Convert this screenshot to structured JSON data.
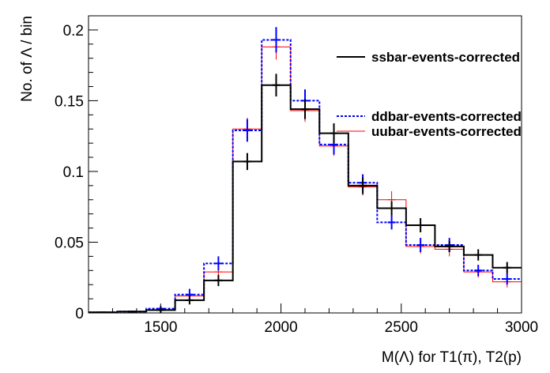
{
  "chart_data": {
    "type": "step-histogram",
    "xlabel": "M(Λ) for T1(π), T2(p)",
    "ylabel": "No. of Λ / bin",
    "xlim": [
      1200,
      3000
    ],
    "ylim": [
      0,
      0.21
    ],
    "x_ticks": [
      {
        "value": 1500,
        "label": "1500"
      },
      {
        "value": 2000,
        "label": "2000"
      },
      {
        "value": 2500,
        "label": "2500"
      },
      {
        "value": 3000,
        "label": "3000"
      }
    ],
    "y_ticks": [
      {
        "value": 0,
        "label": "0"
      },
      {
        "value": 0.05,
        "label": "0.05"
      },
      {
        "value": 0.1,
        "label": "0.1"
      },
      {
        "value": 0.15,
        "label": "0.15"
      },
      {
        "value": 0.2,
        "label": "0.2"
      }
    ],
    "bin_edges": [
      1200,
      1320,
      1440,
      1560,
      1680,
      1800,
      1920,
      2040,
      2160,
      2280,
      2400,
      2520,
      2640,
      2760,
      2880,
      3000
    ],
    "legend_position": "top-right",
    "series": [
      {
        "name": "ssbar-events-corrected",
        "color": "#000000",
        "style": "solid",
        "values": [
          0.0005,
          0.001,
          0.002,
          0.009,
          0.023,
          0.107,
          0.161,
          0.144,
          0.127,
          0.09,
          0.074,
          0.062,
          0.047,
          0.041,
          0.032
        ],
        "errors": [
          0.0005,
          0.0005,
          0.002,
          0.003,
          0.004,
          0.006,
          0.008,
          0.007,
          0.007,
          0.006,
          0.005,
          0.005,
          0.004,
          0.004,
          0.004
        ]
      },
      {
        "name": "ddbar-events-corrected",
        "color": "#0000ff",
        "style": "dashed",
        "values": [
          0.0005,
          0.001,
          0.003,
          0.013,
          0.035,
          0.129,
          0.193,
          0.15,
          0.119,
          0.092,
          0.064,
          0.048,
          0.048,
          0.03,
          0.024
        ],
        "errors": [
          0.0005,
          0.0005,
          0.002,
          0.004,
          0.005,
          0.008,
          0.009,
          0.008,
          0.007,
          0.006,
          0.005,
          0.005,
          0.005,
          0.004,
          0.004
        ]
      },
      {
        "name": "uubar-events-corrected",
        "color": "#ff0000",
        "style": "solid",
        "values": [
          0.0005,
          0.001,
          0.002,
          0.012,
          0.029,
          0.13,
          0.188,
          0.143,
          0.118,
          0.089,
          0.08,
          0.047,
          0.045,
          0.029,
          0.022
        ],
        "errors": [
          0.0005,
          0.0005,
          0.002,
          0.004,
          0.005,
          0.008,
          0.009,
          0.008,
          0.007,
          0.006,
          0.006,
          0.005,
          0.005,
          0.004,
          0.004
        ]
      }
    ]
  }
}
